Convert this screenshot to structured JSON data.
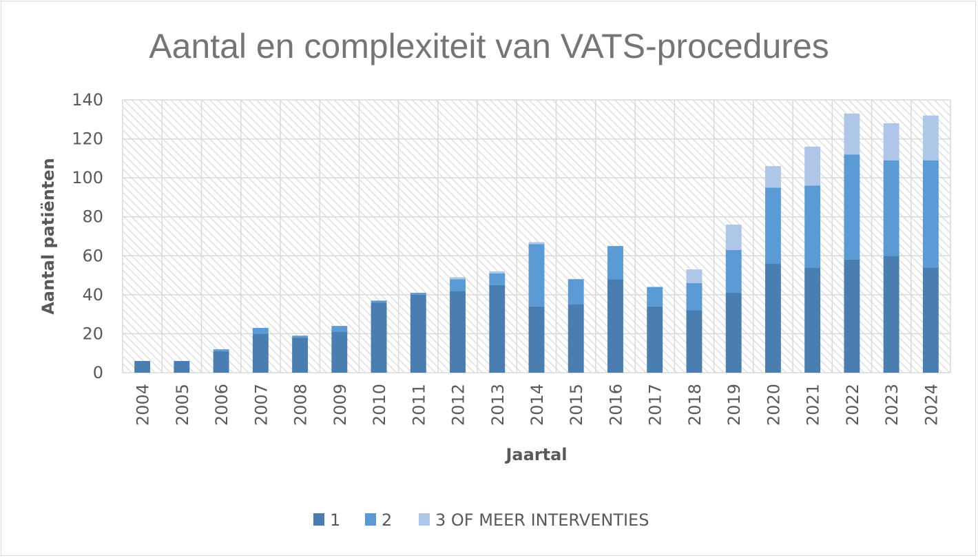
{
  "chart_data": {
    "type": "bar",
    "stacked": true,
    "title": "Aantal en complexiteit van VATS-procedures",
    "xlabel": "Jaartal",
    "ylabel": "Aantal patiënten",
    "ylim": [
      0,
      140
    ],
    "yticks": [
      0,
      20,
      40,
      60,
      80,
      100,
      120,
      140
    ],
    "grid": true,
    "legend_position": "bottom",
    "categories": [
      "2004",
      "2005",
      "2006",
      "2007",
      "2008",
      "2009",
      "2010",
      "2011",
      "2012",
      "2013",
      "2014",
      "2015",
      "2016",
      "2017",
      "2018",
      "2019",
      "2020",
      "2021",
      "2022",
      "2023",
      "2024"
    ],
    "series": [
      {
        "name": "1",
        "color": "#4a7eb0",
        "values": [
          6,
          6,
          11,
          20,
          18,
          21,
          36,
          40,
          42,
          45,
          34,
          35,
          48,
          34,
          32,
          41,
          56,
          54,
          58,
          60,
          54
        ]
      },
      {
        "name": "2",
        "color": "#5b9bd5",
        "values": [
          0,
          0,
          1,
          3,
          1,
          3,
          1,
          1,
          6,
          6,
          32,
          13,
          17,
          10,
          14,
          22,
          39,
          42,
          54,
          49,
          55
        ]
      },
      {
        "name": "3 OF MEER INTERVENTIES",
        "color": "#aec6e8",
        "values": [
          0,
          0,
          0,
          0,
          0,
          0,
          0,
          0,
          1,
          1,
          1,
          0,
          0,
          0,
          7,
          13,
          11,
          20,
          21,
          19,
          23
        ]
      }
    ]
  }
}
